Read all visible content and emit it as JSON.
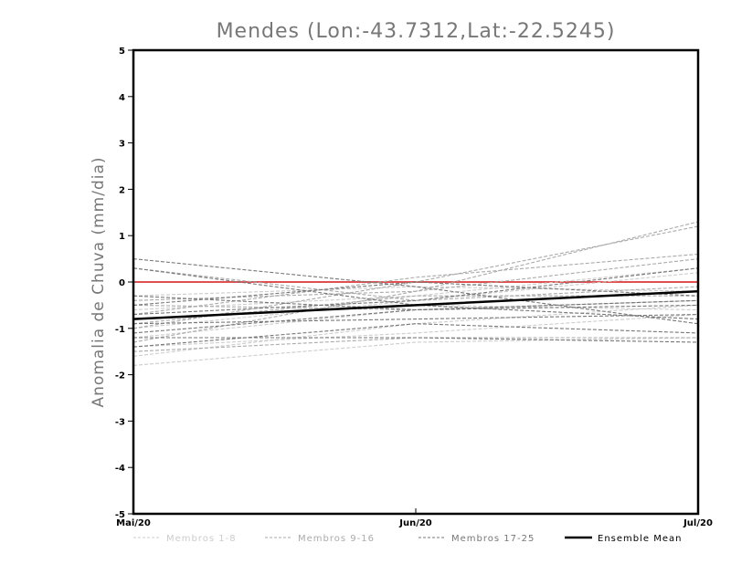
{
  "chart_data": {
    "type": "line",
    "title": "Mendes (Lon:-43.7312,Lat:-22.5245)",
    "xlabel": "",
    "ylabel": "Anomalia de Chuva (mm/dia)",
    "x_categories": [
      "Mai/20",
      "Jun/20",
      "Jul/20"
    ],
    "ylim": [
      -5,
      5
    ],
    "yticks": [
      -5,
      -4,
      -3,
      -2,
      -1,
      0,
      1,
      2,
      3,
      4,
      5
    ],
    "reference_line": {
      "y": 0,
      "color": "#e05050"
    },
    "legend_position": "bottom",
    "groups": [
      {
        "name": "Membros 1-8",
        "color": "#cccccc",
        "style": "dashed",
        "series": [
          {
            "values": [
              -1.8,
              -1.3,
              -1.2
            ]
          },
          {
            "values": [
              -1.6,
              -0.9,
              -0.5
            ]
          },
          {
            "values": [
              -1.2,
              -0.6,
              -0.4
            ]
          },
          {
            "values": [
              -1.0,
              -0.4,
              0.2
            ]
          },
          {
            "values": [
              -0.8,
              -0.5,
              -0.6
            ]
          },
          {
            "values": [
              -0.6,
              -0.3,
              0.3
            ]
          },
          {
            "values": [
              -0.3,
              -0.1,
              -0.2
            ]
          },
          {
            "values": [
              -1.4,
              -1.1,
              -0.7
            ]
          }
        ]
      },
      {
        "name": "Membros 9-16",
        "color": "#aaaaaa",
        "style": "dashed",
        "series": [
          {
            "values": [
              -1.3,
              -0.2,
              1.3
            ]
          },
          {
            "values": [
              -1.0,
              0.0,
              1.2
            ]
          },
          {
            "values": [
              -0.7,
              0.1,
              0.6
            ]
          },
          {
            "values": [
              -0.4,
              -0.2,
              0.5
            ]
          },
          {
            "values": [
              -1.5,
              -1.2,
              -1.2
            ]
          },
          {
            "values": [
              -0.5,
              -0.6,
              -0.4
            ]
          },
          {
            "values": [
              0.3,
              -0.4,
              -0.1
            ]
          },
          {
            "values": [
              -0.9,
              -0.3,
              -0.3
            ]
          }
        ]
      },
      {
        "name": "Membros 17-25",
        "color": "#777777",
        "style": "dashed",
        "series": [
          {
            "values": [
              0.5,
              -0.1,
              -0.9
            ]
          },
          {
            "values": [
              0.3,
              -0.5,
              -0.8
            ]
          },
          {
            "values": [
              -0.3,
              -0.6,
              -0.5
            ]
          },
          {
            "values": [
              -0.7,
              -0.4,
              0.3
            ]
          },
          {
            "values": [
              -1.2,
              -1.2,
              -1.3
            ]
          },
          {
            "values": [
              -1.4,
              -0.9,
              -1.1
            ]
          },
          {
            "values": [
              -0.5,
              0.0,
              -0.3
            ]
          },
          {
            "values": [
              -1.1,
              -0.6,
              -0.4
            ]
          },
          {
            "values": [
              -0.9,
              -0.8,
              -0.7
            ]
          }
        ]
      },
      {
        "name": "Ensemble Mean",
        "color": "#000000",
        "style": "solid",
        "series": [
          {
            "values": [
              -0.8,
              -0.5,
              -0.2
            ]
          }
        ]
      }
    ]
  }
}
